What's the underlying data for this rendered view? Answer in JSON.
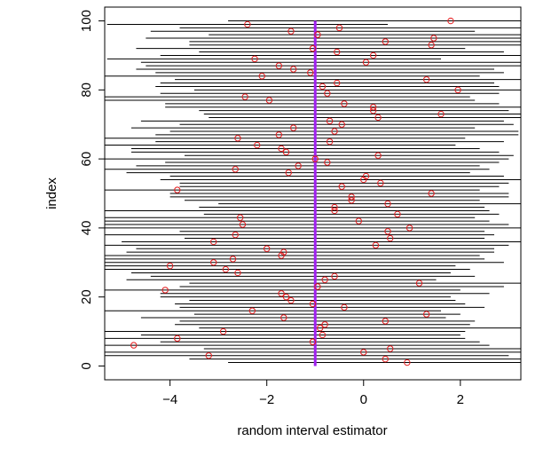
{
  "chart_data": {
    "type": "scatter",
    "title": "",
    "xlabel": "random interval estimator",
    "ylabel": "index",
    "xlim": [
      -5.35,
      3.25
    ],
    "ylim": [
      -4,
      104
    ],
    "x_ticks": [
      -4,
      -2,
      0,
      2
    ],
    "y_ticks": [
      0,
      20,
      40,
      60,
      80,
      100
    ],
    "x_tick_labels": [
      "−4",
      "−2",
      "0",
      "2"
    ],
    "y_tick_labels": [
      "0",
      "20",
      "40",
      "60",
      "80",
      "100"
    ],
    "reference_line": {
      "x": -1,
      "color": "#a020f0"
    },
    "point_color": "#e41a1c",
    "interval_color": "#000000",
    "grid": false,
    "series": [
      {
        "values": [
          {
            "index": 1,
            "estimate": 0.9,
            "lower": -2.8,
            "upper": 3.3
          },
          {
            "index": 2,
            "estimate": 0.45,
            "lower": -3.6,
            "upper": 3.3
          },
          {
            "index": 3,
            "estimate": -3.2,
            "lower": -5.4,
            "upper": 3.0
          },
          {
            "index": 4,
            "estimate": 0.0,
            "lower": -5.4,
            "upper": 3.3
          },
          {
            "index": 5,
            "estimate": 0.55,
            "lower": -3.3,
            "upper": 3.3
          },
          {
            "index": 6,
            "estimate": -4.75,
            "lower": -5.4,
            "upper": 2.6
          },
          {
            "index": 7,
            "estimate": -1.05,
            "lower": -4.2,
            "upper": 2.4
          },
          {
            "index": 8,
            "estimate": -3.85,
            "lower": -5.4,
            "upper": 2.1
          },
          {
            "index": 9,
            "estimate": -0.85,
            "lower": -4.6,
            "upper": 2.0
          },
          {
            "index": 10,
            "estimate": -2.9,
            "lower": -5.4,
            "upper": 2.1
          },
          {
            "index": 11,
            "estimate": -0.9,
            "lower": -3.4,
            "upper": 3.3
          },
          {
            "index": 12,
            "estimate": -0.8,
            "lower": -3.9,
            "upper": 2.2
          },
          {
            "index": 13,
            "estimate": 0.45,
            "lower": -3.8,
            "upper": 2.3
          },
          {
            "index": 14,
            "estimate": -1.65,
            "lower": -4.6,
            "upper": 1.7
          },
          {
            "index": 15,
            "estimate": 1.3,
            "lower": -3.5,
            "upper": 2.0
          },
          {
            "index": 16,
            "estimate": -2.3,
            "lower": -5.4,
            "upper": 1.6
          },
          {
            "index": 17,
            "estimate": -0.4,
            "lower": -3.8,
            "upper": 2.5
          },
          {
            "index": 18,
            "estimate": -1.05,
            "lower": -3.9,
            "upper": 2.1
          },
          {
            "index": 19,
            "estimate": -1.5,
            "lower": -3.6,
            "upper": 1.9
          },
          {
            "index": 20,
            "estimate": -1.6,
            "lower": -4.2,
            "upper": 1.8
          },
          {
            "index": 21,
            "estimate": -1.7,
            "lower": -4.2,
            "upper": 2.6
          },
          {
            "index": 22,
            "estimate": -4.1,
            "lower": -5.4,
            "upper": 2.0
          },
          {
            "index": 23,
            "estimate": -0.95,
            "lower": -3.8,
            "upper": 2.9
          },
          {
            "index": 24,
            "estimate": 1.15,
            "lower": -3.6,
            "upper": 3.3
          },
          {
            "index": 25,
            "estimate": -0.8,
            "lower": -4.9,
            "upper": 1.5
          },
          {
            "index": 26,
            "estimate": -0.6,
            "lower": -4.4,
            "upper": 2.3
          },
          {
            "index": 27,
            "estimate": -2.6,
            "lower": -4.8,
            "upper": 1.8
          },
          {
            "index": 28,
            "estimate": -2.85,
            "lower": -5.4,
            "upper": 2.2
          },
          {
            "index": 29,
            "estimate": -4.0,
            "lower": -5.4,
            "upper": 1.9
          },
          {
            "index": 30,
            "estimate": -3.1,
            "lower": -5.4,
            "upper": 2.9
          },
          {
            "index": 31,
            "estimate": -2.7,
            "lower": -5.4,
            "upper": 2.5
          },
          {
            "index": 32,
            "estimate": -1.7,
            "lower": -5.4,
            "upper": 2.4
          },
          {
            "index": 33,
            "estimate": -1.65,
            "lower": -4.9,
            "upper": 2.7
          },
          {
            "index": 34,
            "estimate": -2.0,
            "lower": -4.7,
            "upper": 2.7
          },
          {
            "index": 35,
            "estimate": 0.25,
            "lower": -5.4,
            "upper": 3.0
          },
          {
            "index": 36,
            "estimate": -3.1,
            "lower": -5.0,
            "upper": 3.3
          },
          {
            "index": 37,
            "estimate": 0.55,
            "lower": -3.7,
            "upper": 2.5
          },
          {
            "index": 38,
            "estimate": -2.65,
            "lower": -5.4,
            "upper": 2.7
          },
          {
            "index": 39,
            "estimate": 0.5,
            "lower": -3.8,
            "upper": 2.5
          },
          {
            "index": 40,
            "estimate": 0.95,
            "lower": -5.4,
            "upper": 3.3
          },
          {
            "index": 41,
            "estimate": -2.5,
            "lower": -5.4,
            "upper": 3.0
          },
          {
            "index": 42,
            "estimate": -0.1,
            "lower": -5.4,
            "upper": 2.6
          },
          {
            "index": 43,
            "estimate": -2.55,
            "lower": -5.4,
            "upper": 2.3
          },
          {
            "index": 44,
            "estimate": 0.7,
            "lower": -3.3,
            "upper": 2.8
          },
          {
            "index": 45,
            "estimate": -0.6,
            "lower": -5.4,
            "upper": 2.6
          },
          {
            "index": 46,
            "estimate": -0.6,
            "lower": -3.4,
            "upper": 2.5
          },
          {
            "index": 47,
            "estimate": 0.5,
            "lower": -3.0,
            "upper": 3.3
          },
          {
            "index": 48,
            "estimate": -0.25,
            "lower": -3.7,
            "upper": 2.4
          },
          {
            "index": 49,
            "estimate": -0.25,
            "lower": -4.0,
            "upper": 3.0
          },
          {
            "index": 50,
            "estimate": 1.4,
            "lower": -4.0,
            "upper": 3.0
          },
          {
            "index": 51,
            "estimate": -3.85,
            "lower": -5.4,
            "upper": 2.4
          },
          {
            "index": 52,
            "estimate": -0.45,
            "lower": -3.8,
            "upper": 2.8
          },
          {
            "index": 53,
            "estimate": 0.35,
            "lower": -3.8,
            "upper": 3.0
          },
          {
            "index": 54,
            "estimate": 0.0,
            "lower": -4.2,
            "upper": 3.3
          },
          {
            "index": 55,
            "estimate": 0.05,
            "lower": -4.0,
            "upper": 2.9
          },
          {
            "index": 56,
            "estimate": -1.55,
            "lower": -4.9,
            "upper": 2.2
          },
          {
            "index": 57,
            "estimate": -2.65,
            "lower": -5.4,
            "upper": 2.6
          },
          {
            "index": 58,
            "estimate": -1.35,
            "lower": -4.7,
            "upper": 2.4
          },
          {
            "index": 59,
            "estimate": -0.75,
            "lower": -4.1,
            "upper": 2.8
          },
          {
            "index": 60,
            "estimate": -1.0,
            "lower": -5.4,
            "upper": 3.0
          },
          {
            "index": 61,
            "estimate": 0.3,
            "lower": -3.7,
            "upper": 3.1
          },
          {
            "index": 62,
            "estimate": -1.6,
            "lower": -4.8,
            "upper": 2.8
          },
          {
            "index": 63,
            "estimate": -1.7,
            "lower": -4.8,
            "upper": 2.4
          },
          {
            "index": 64,
            "estimate": -2.2,
            "lower": -5.4,
            "upper": 1.9
          },
          {
            "index": 65,
            "estimate": -0.7,
            "lower": -4.3,
            "upper": 2.9
          },
          {
            "index": 66,
            "estimate": -2.6,
            "lower": -5.4,
            "upper": 2.1
          },
          {
            "index": 67,
            "estimate": -1.75,
            "lower": -4.3,
            "upper": 3.2
          },
          {
            "index": 68,
            "estimate": -0.6,
            "lower": -4.0,
            "upper": 3.2
          },
          {
            "index": 69,
            "estimate": -1.45,
            "lower": -4.8,
            "upper": 2.3
          },
          {
            "index": 70,
            "estimate": -0.45,
            "lower": -3.8,
            "upper": 3.1
          },
          {
            "index": 71,
            "estimate": -0.7,
            "lower": -4.6,
            "upper": 2.9
          },
          {
            "index": 72,
            "estimate": 0.3,
            "lower": -3.2,
            "upper": 3.3
          },
          {
            "index": 73,
            "estimate": 1.6,
            "lower": -3.3,
            "upper": 3.3
          },
          {
            "index": 74,
            "estimate": 0.2,
            "lower": -3.4,
            "upper": 3.0
          },
          {
            "index": 75,
            "estimate": 0.2,
            "lower": -4.1,
            "upper": 3.3
          },
          {
            "index": 76,
            "estimate": -0.4,
            "lower": -4.1,
            "upper": 2.8
          },
          {
            "index": 77,
            "estimate": -1.95,
            "lower": -5.4,
            "upper": 2.3
          },
          {
            "index": 78,
            "estimate": -2.45,
            "lower": -5.4,
            "upper": 2.2
          },
          {
            "index": 79,
            "estimate": -0.75,
            "lower": -4.2,
            "upper": 2.8
          },
          {
            "index": 80,
            "estimate": 1.95,
            "lower": -3.5,
            "upper": 3.3
          },
          {
            "index": 81,
            "estimate": -0.85,
            "lower": -4.3,
            "upper": 2.8
          },
          {
            "index": 82,
            "estimate": -0.55,
            "lower": -4.2,
            "upper": 2.7
          },
          {
            "index": 83,
            "estimate": 1.3,
            "lower": -3.9,
            "upper": 3.3
          },
          {
            "index": 84,
            "estimate": -2.1,
            "lower": -5.4,
            "upper": 2.4
          },
          {
            "index": 85,
            "estimate": -1.1,
            "lower": -4.3,
            "upper": 2.9
          },
          {
            "index": 86,
            "estimate": -1.45,
            "lower": -4.7,
            "upper": 2.7
          },
          {
            "index": 87,
            "estimate": -1.75,
            "lower": -4.5,
            "upper": 3.3
          },
          {
            "index": 88,
            "estimate": 0.05,
            "lower": -4.6,
            "upper": 3.3
          },
          {
            "index": 89,
            "estimate": -2.25,
            "lower": -5.3,
            "upper": 1.6
          },
          {
            "index": 90,
            "estimate": 0.2,
            "lower": -4.2,
            "upper": 3.3
          },
          {
            "index": 91,
            "estimate": -0.55,
            "lower": -3.4,
            "upper": 2.9
          },
          {
            "index": 92,
            "estimate": -1.05,
            "lower": -4.7,
            "upper": 2.1
          },
          {
            "index": 93,
            "estimate": 1.4,
            "lower": -3.6,
            "upper": 3.3
          },
          {
            "index": 94,
            "estimate": 0.45,
            "lower": -3.6,
            "upper": 3.3
          },
          {
            "index": 95,
            "estimate": 1.45,
            "lower": -4.5,
            "upper": 3.3
          },
          {
            "index": 96,
            "estimate": -0.95,
            "lower": -3.2,
            "upper": 3.3
          },
          {
            "index": 97,
            "estimate": -1.5,
            "lower": -4.4,
            "upper": 2.3
          },
          {
            "index": 98,
            "estimate": -0.5,
            "lower": -3.8,
            "upper": 3.3
          },
          {
            "index": 99,
            "estimate": -2.4,
            "lower": -5.3,
            "upper": 0.5
          },
          {
            "index": 100,
            "estimate": 1.8,
            "lower": -2.8,
            "upper": 3.3
          }
        ]
      }
    ]
  }
}
